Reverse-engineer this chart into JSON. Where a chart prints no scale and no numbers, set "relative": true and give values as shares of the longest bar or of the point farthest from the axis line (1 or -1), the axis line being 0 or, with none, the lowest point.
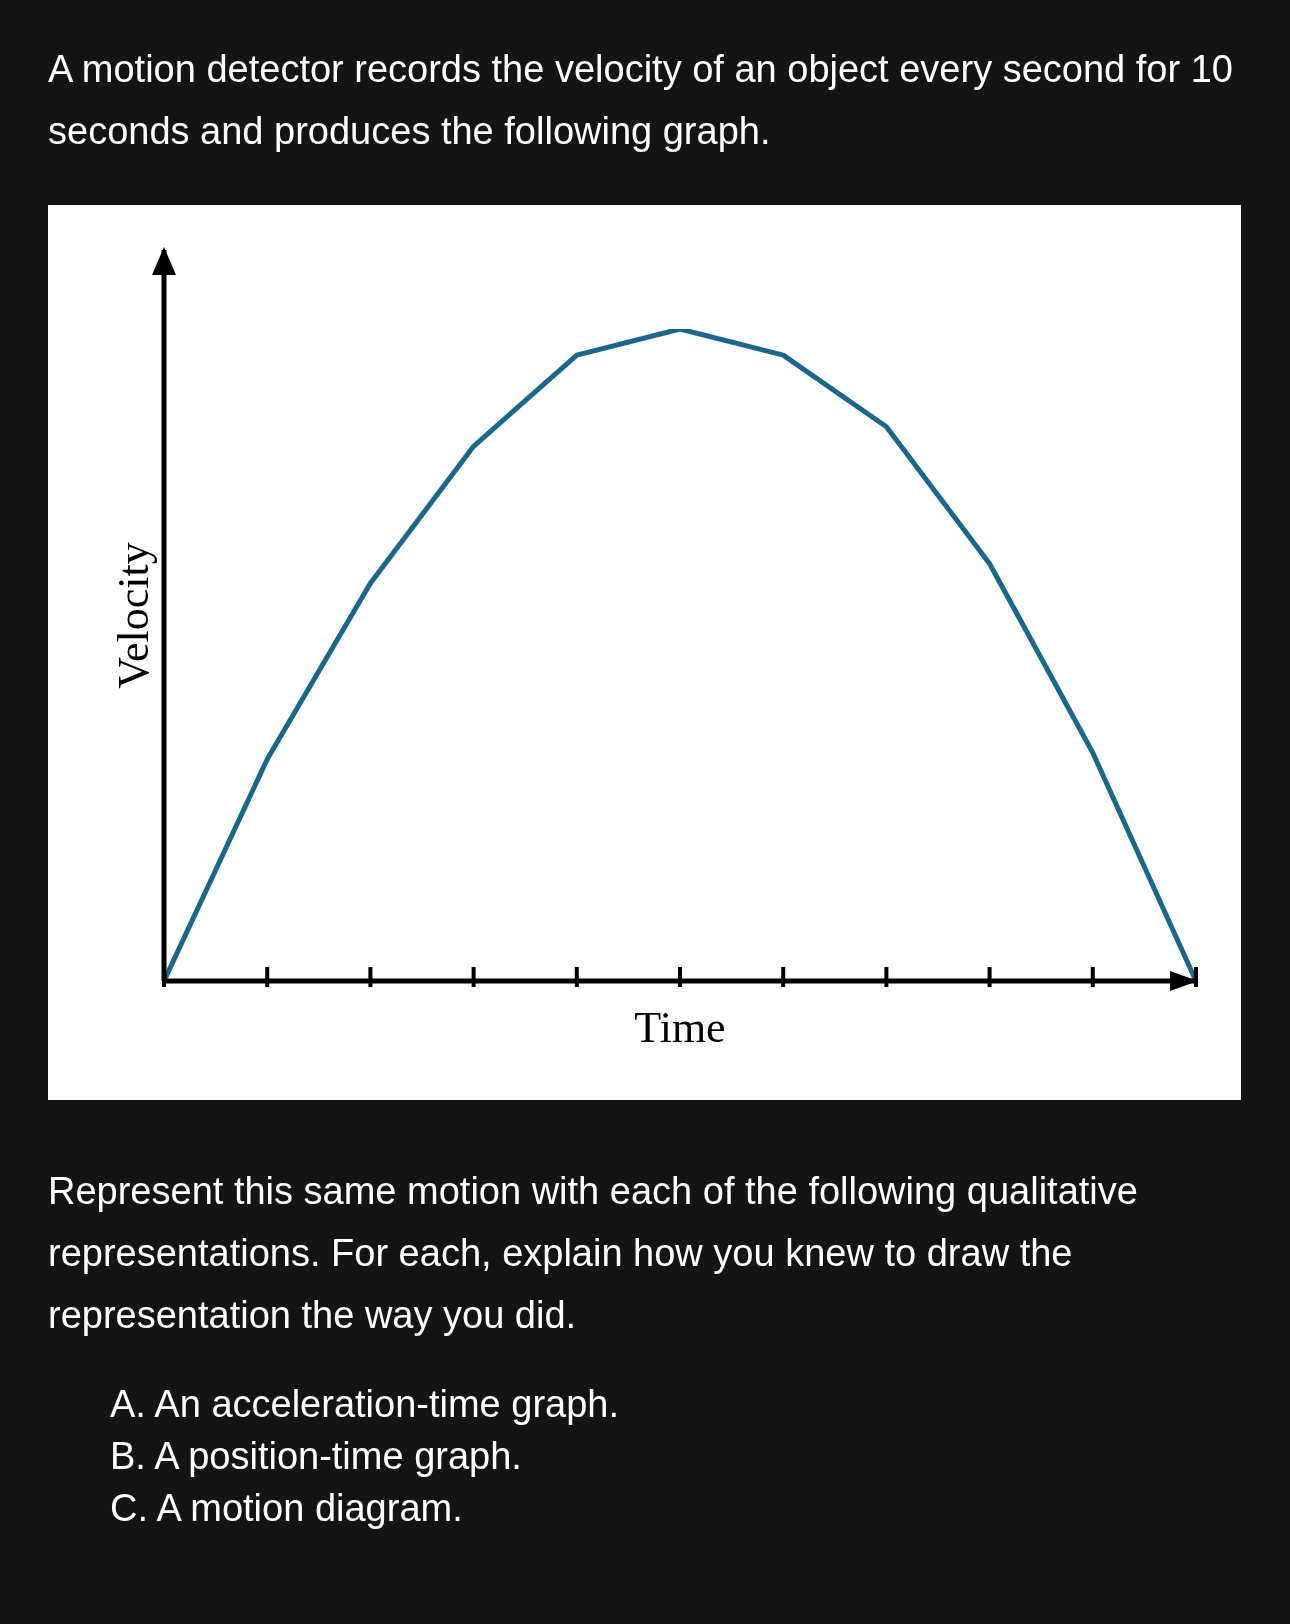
{
  "chart_data": {
    "type": "line",
    "title": "A motion detector records the velocity of an object every second for 10 seconds and produces the following graph.",
    "xlabel": "Time",
    "ylabel": "Velocity",
    "relative": true,
    "categories": [
      null,
      null,
      null,
      null,
      null,
      null,
      null,
      null,
      null,
      null,
      null
    ],
    "series": [
      {
        "color": "#1a6789",
        "values": [
          0,
          0.34,
          0.61,
          0.82,
          0.96,
          1,
          0.96,
          0.85,
          0.64,
          0.35,
          0
        ]
      }
    ],
    "marker": "none",
    "line_style": "solid",
    "annotations": [
      "Represent this same motion with each of the following qualitative representations. For each, explain how you knew to draw the representation the way you did.",
      "A. An acceleration-time graph.",
      "B. A position-time graph.",
      "C. A motion diagram."
    ]
  }
}
